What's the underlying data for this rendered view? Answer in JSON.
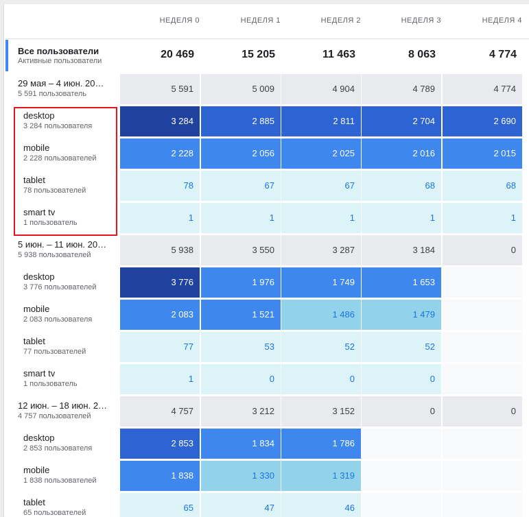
{
  "columns": [
    "НЕДЕЛЯ 0",
    "НЕДЕЛЯ 1",
    "НЕДЕЛЯ 2",
    "НЕДЕЛЯ 3",
    "НЕДЕЛЯ 4"
  ],
  "totals": {
    "title": "Все пользователи",
    "subtitle": "Активные пользователи",
    "values": [
      "20 469",
      "15 205",
      "11 463",
      "8 063",
      "4 774"
    ]
  },
  "rows": [
    {
      "kind": "cohort",
      "label": "29 мая – 4 июн. 20…",
      "sub": "5 591 пользователь",
      "values": [
        "5 591",
        "5 009",
        "4 904",
        "4 789",
        "4 774"
      ]
    },
    {
      "kind": "device",
      "label": "desktop",
      "sub": "3 284 пользователя",
      "values": [
        "3 284",
        "2 885",
        "2 811",
        "2 704",
        "2 690"
      ],
      "levels": [
        5,
        4,
        4,
        4,
        4
      ]
    },
    {
      "kind": "device",
      "label": "mobile",
      "sub": "2 228 пользователей",
      "values": [
        "2 228",
        "2 056",
        "2 025",
        "2 016",
        "2 015"
      ],
      "levels": [
        3,
        3,
        3,
        3,
        3
      ]
    },
    {
      "kind": "device",
      "label": "tablet",
      "sub": "78 пользователей",
      "values": [
        "78",
        "67",
        "67",
        "68",
        "68"
      ],
      "levels": [
        1,
        1,
        1,
        1,
        1
      ]
    },
    {
      "kind": "device",
      "label": "smart tv",
      "sub": "1 пользователь",
      "values": [
        "1",
        "1",
        "1",
        "1",
        "1"
      ],
      "levels": [
        1,
        1,
        1,
        1,
        1
      ]
    },
    {
      "kind": "cohort",
      "label": "5 июн. – 11 июн. 20…",
      "sub": "5 938 пользователей",
      "values": [
        "5 938",
        "3 550",
        "3 287",
        "3 184",
        "0"
      ]
    },
    {
      "kind": "device",
      "label": "desktop",
      "sub": "3 776 пользователей",
      "values": [
        "3 776",
        "1 976",
        "1 749",
        "1 653",
        ""
      ],
      "levels": [
        5,
        3,
        3,
        3,
        0
      ]
    },
    {
      "kind": "device",
      "label": "mobile",
      "sub": "2 083 пользователя",
      "values": [
        "2 083",
        "1 521",
        "1 486",
        "1 479",
        ""
      ],
      "levels": [
        3,
        3,
        2,
        2,
        0
      ]
    },
    {
      "kind": "device",
      "label": "tablet",
      "sub": "77 пользователей",
      "values": [
        "77",
        "53",
        "52",
        "52",
        ""
      ],
      "levels": [
        1,
        1,
        1,
        1,
        0
      ]
    },
    {
      "kind": "device",
      "label": "smart tv",
      "sub": "1 пользователь",
      "values": [
        "1",
        "0",
        "0",
        "0",
        ""
      ],
      "levels": [
        1,
        1,
        1,
        1,
        0
      ]
    },
    {
      "kind": "cohort",
      "label": "12 июн. – 18 июн. 2…",
      "sub": "4 757 пользователей",
      "values": [
        "4 757",
        "3 212",
        "3 152",
        "0",
        "0"
      ]
    },
    {
      "kind": "device",
      "label": "desktop",
      "sub": "2 853 пользователя",
      "values": [
        "2 853",
        "1 834",
        "1 786",
        "",
        ""
      ],
      "levels": [
        4,
        3,
        3,
        0,
        0
      ]
    },
    {
      "kind": "device",
      "label": "mobile",
      "sub": "1 838 пользователей",
      "values": [
        "1 838",
        "1 330",
        "1 319",
        "",
        ""
      ],
      "levels": [
        3,
        2,
        2,
        0,
        0
      ]
    },
    {
      "kind": "device",
      "label": "tablet",
      "sub": "65 пользователей",
      "values": [
        "65",
        "47",
        "46",
        "",
        ""
      ],
      "levels": [
        1,
        1,
        1,
        0,
        0
      ]
    }
  ],
  "colors": {
    "cohort_bg": "#e8eaed",
    "empty_bg": "#f8f9fa",
    "level_1": "#dcf4f8",
    "level_2": "#93d3ea",
    "level_3": "#3e87ee",
    "level_4": "#2e63d3",
    "level_5": "#1e429e",
    "highlight_border": "#e8141b"
  }
}
